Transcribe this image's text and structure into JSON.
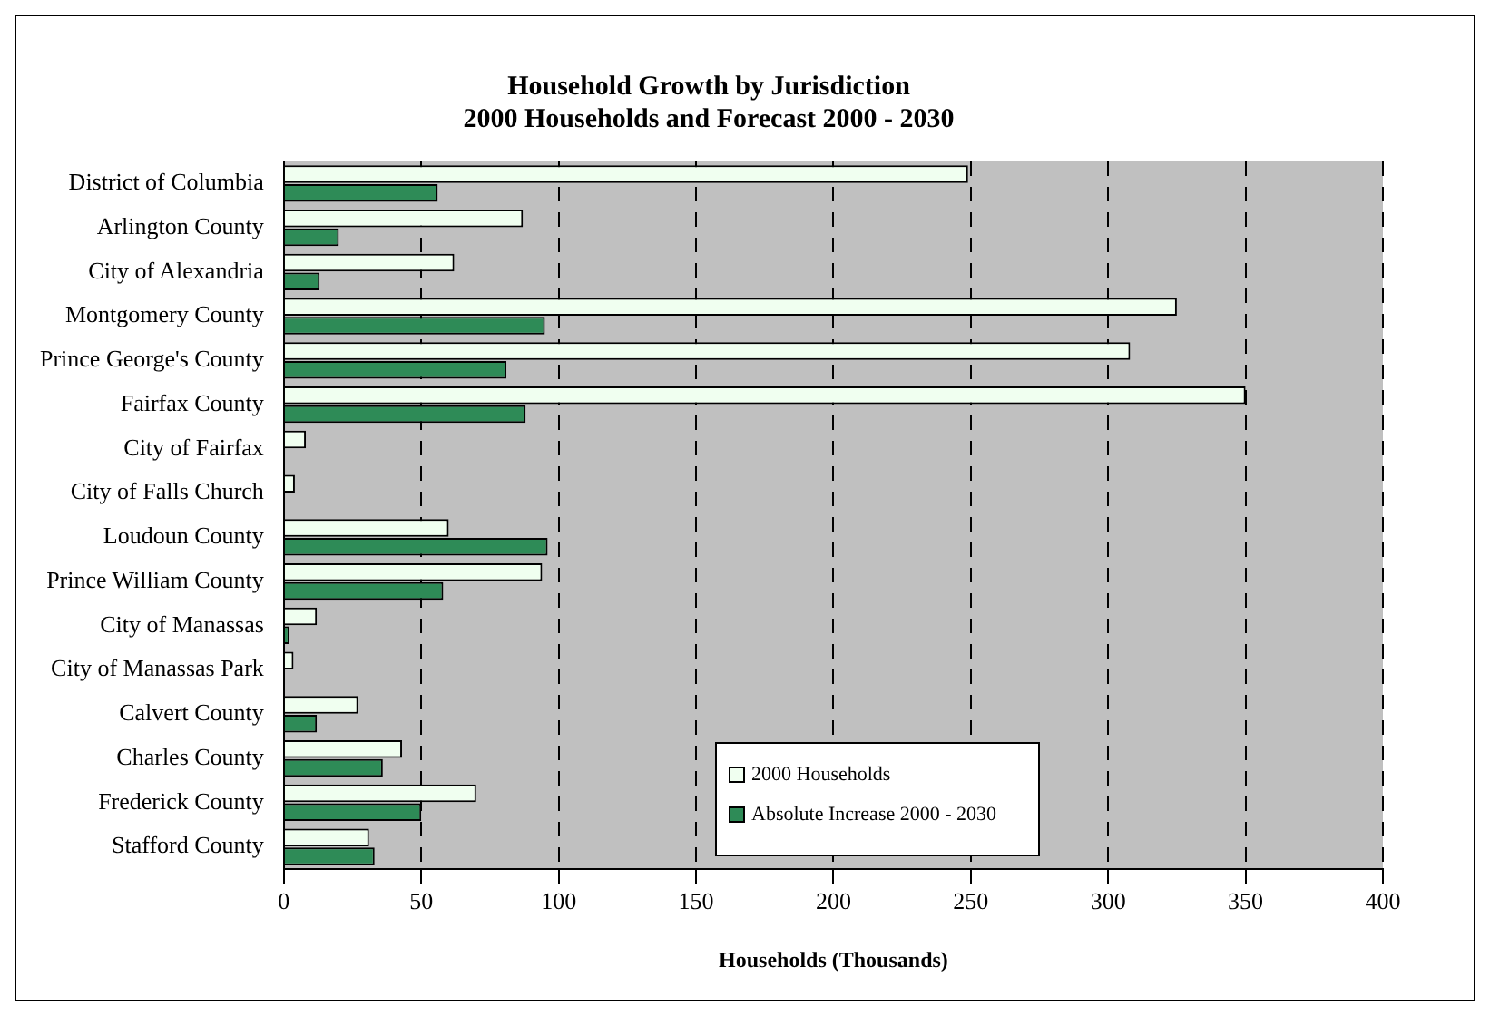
{
  "chart_data": {
    "type": "bar",
    "orientation": "horizontal",
    "title": "Household Growth by Jurisdiction\n2000 Households and Forecast 2000 - 2030",
    "xlabel": "Households (Thousands)",
    "categories": [
      "District of Columbia",
      "Arlington County",
      "City of Alexandria",
      "Montgomery County",
      "Prince George's County",
      "Fairfax County",
      "City of Fairfax",
      "City of Falls Church",
      "Loudoun County",
      "Prince William County",
      "City of Manassas",
      "City of Manassas Park",
      "Calvert County",
      "Charles County",
      "Frederick County",
      "Stafford County"
    ],
    "series": [
      {
        "name": "2000 Households",
        "color": "#f0fff0",
        "values": [
          249,
          87,
          62,
          325,
          308,
          350,
          8,
          4,
          60,
          94,
          12,
          3.5,
          27,
          43,
          70,
          31
        ]
      },
      {
        "name": "Absolute Increase 2000 - 2030",
        "color": "#2e8b57",
        "values": [
          56,
          20,
          13,
          95,
          81,
          88,
          null,
          null,
          96,
          58,
          2,
          null,
          12,
          36,
          50,
          33
        ]
      }
    ],
    "xlim": [
      0,
      400
    ],
    "xticks": [
      0,
      50,
      100,
      150,
      200,
      250,
      300,
      350,
      400
    ],
    "grid": "x",
    "legend": "bottom right"
  }
}
